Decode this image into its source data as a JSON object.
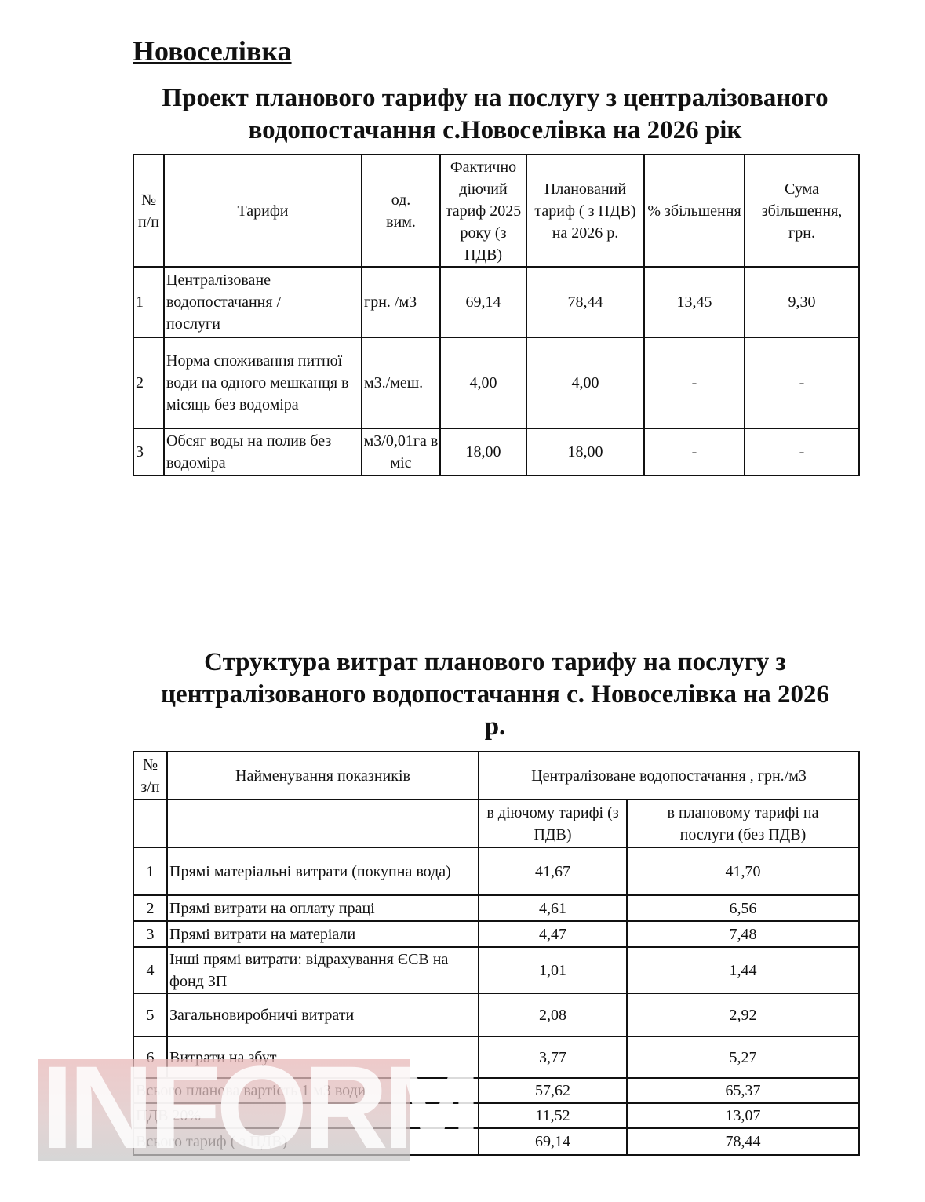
{
  "heading": "Новоселівка",
  "title1": [
    "Проект планового тарифу на послугу з централізованого",
    "водопостачання с.Новоселівка на 2026 рік"
  ],
  "table1": {
    "headers": [
      "№ п/п",
      "Тарифи",
      "од. вим.",
      "Фактично діючий тариф 2025 року (з ПДВ)",
      "Планований тариф ( з ПДВ) на 2026 р.",
      "% збільшення",
      "Сума збільшення, грн."
    ],
    "rows": [
      [
        "1",
        "Централізоване водопостачання / послуги",
        "грн. /м3",
        "69,14",
        "78,44",
        "13,45",
        "9,30"
      ],
      [
        "2",
        "Норма споживання питної води на одного мешканця в місяць без водоміра",
        "м3./меш.",
        "4,00",
        "4,00",
        "-",
        "-"
      ],
      [
        "3",
        "Обсяг воды на полив без водоміра",
        "м3/0,01га в міс",
        "18,00",
        "18,00",
        "-",
        "-"
      ]
    ]
  },
  "title2": [
    "Структура витрат планового тарифу на послугу з",
    "централізованого водопостачання с. Новоселівка на 2026",
    "р."
  ],
  "table2": {
    "h_num": "№ з/п",
    "h_name": "Найменування показників",
    "h_group": "Централізоване водопостачання , грн./м3",
    "h_cur": "в діючому тарифі (з ПДВ)",
    "h_plan": "в плановому тарифі на послуги (без ПДВ)",
    "rows": [
      [
        "1",
        "Прямі матеріальні витрати (покупна вода)",
        "41,67",
        "41,70"
      ],
      [
        "2",
        "Прямі витрати на оплату праці",
        "4,61",
        "6,56"
      ],
      [
        "3",
        "Прямі витрати на матеріали",
        "4,47",
        "7,48"
      ],
      [
        "4",
        "Інші прямі витрати: відрахування ЄСВ на фонд ЗП",
        "1,01",
        "1,44"
      ],
      [
        "5",
        "Загальновиробничі витрати",
        "2,08",
        "2,92"
      ],
      [
        "6",
        "Витрати на збут",
        "3,77",
        "5,27"
      ]
    ],
    "totals": [
      [
        "Всього планова вартість 1 м3 води",
        "57,62",
        "65,37"
      ],
      [
        "ПДВ 20%",
        "11,52",
        "13,07"
      ],
      [
        "Всього тариф ( з ПДВ)",
        "69,14",
        "78,44"
      ]
    ]
  },
  "watermark": "INFORM"
}
